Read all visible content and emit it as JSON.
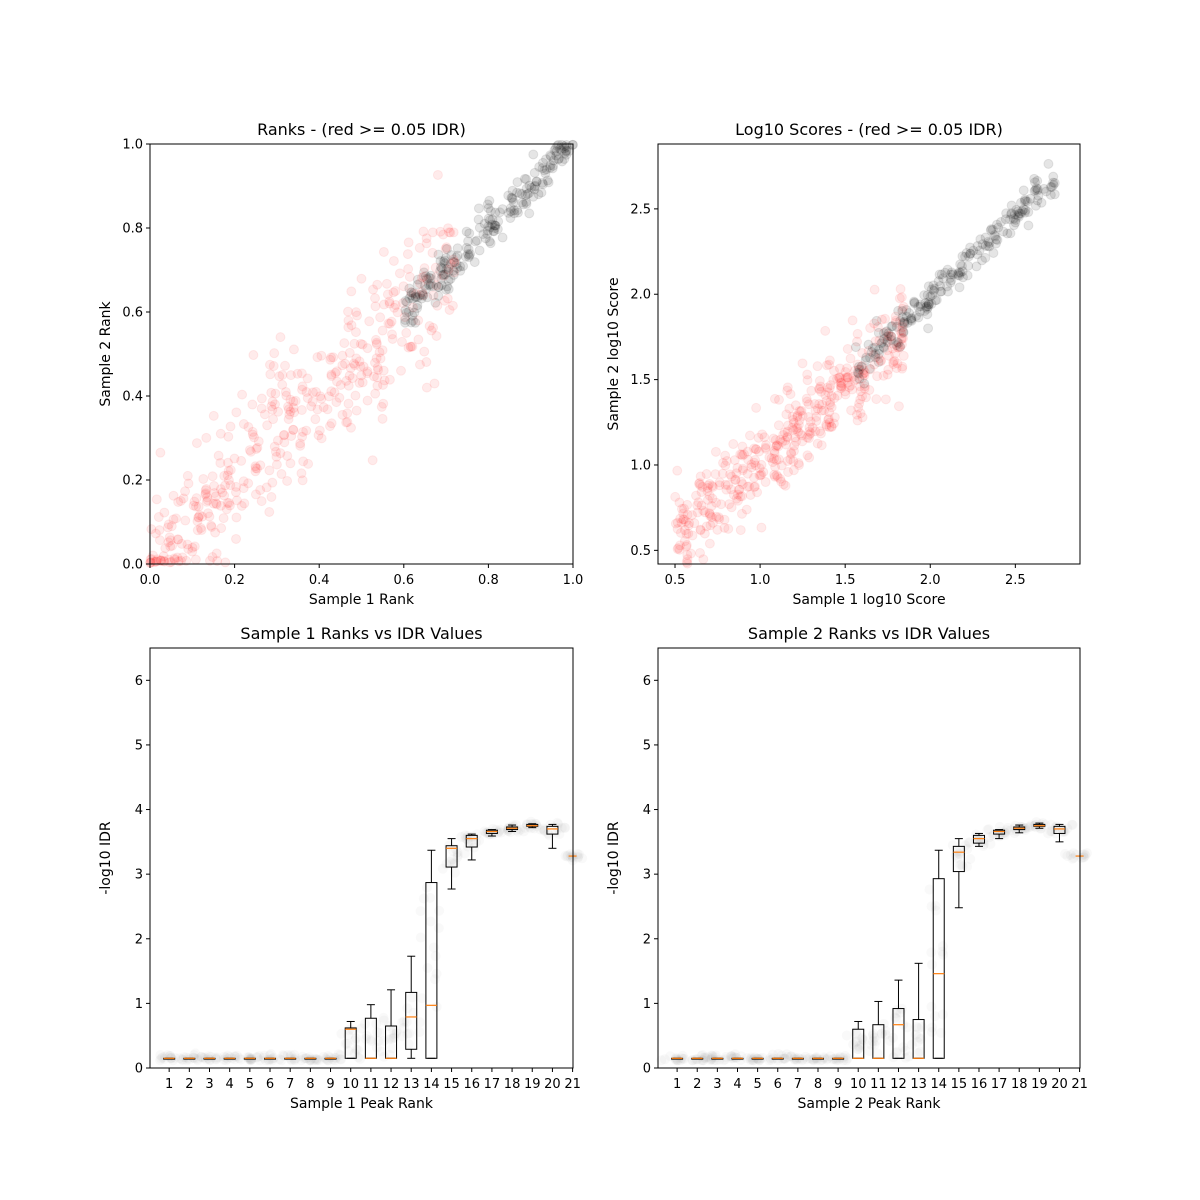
{
  "chart_data": [
    {
      "type": "scatter",
      "title": "Ranks - (red >= 0.05 IDR)",
      "xlabel": "Sample 1 Rank",
      "ylabel": "Sample 2 Rank",
      "xlim": [
        0,
        1
      ],
      "ylim": [
        0,
        1
      ],
      "xticks": [
        "0.0",
        "0.2",
        "0.4",
        "0.6",
        "0.8",
        "1.0"
      ],
      "yticks": [
        "0.0",
        "0.2",
        "0.4",
        "0.6",
        "0.8",
        "1.0"
      ],
      "series": [
        {
          "color": "#ff0000",
          "alpha": 0.08,
          "generator": {
            "n": 420,
            "x": [
              0.0,
              0.72
            ],
            "slope": 1.0,
            "spread": 0.085
          }
        },
        {
          "color": "#000000",
          "alpha": 0.1,
          "generator": {
            "n": 210,
            "x": [
              0.6,
              1.0
            ],
            "slope": 1.0,
            "spread": 0.025
          }
        }
      ],
      "grid": false
    },
    {
      "type": "scatter",
      "title": "Log10 Scores - (red >= 0.05 IDR)",
      "xlabel": "Sample 1 log10 Score",
      "ylabel": "Sample 2 log10 Score",
      "xlim": [
        0.4,
        2.88
      ],
      "ylim": [
        0.42,
        2.88
      ],
      "xticks": [
        "0.5",
        "1.0",
        "1.5",
        "2.0",
        "2.5"
      ],
      "yticks": [
        "0.5",
        "1.0",
        "1.5",
        "2.0",
        "2.5"
      ],
      "series": [
        {
          "color": "#ff0000",
          "alpha": 0.08,
          "generator": {
            "n": 420,
            "x": [
              0.5,
              1.85
            ],
            "slope": 0.85,
            "intercept": 0.18,
            "spread": 0.13
          }
        },
        {
          "color": "#000000",
          "alpha": 0.1,
          "generator": {
            "n": 210,
            "x": [
              1.55,
              2.75
            ],
            "slope": 0.95,
            "intercept": 0.08,
            "spread": 0.05
          }
        }
      ],
      "grid": false
    },
    {
      "type": "box",
      "title": "Sample 1 Ranks vs IDR Values",
      "xlabel": "Sample 1 Peak Rank",
      "ylabel": "-log10 IDR",
      "ylim": [
        0,
        6.5
      ],
      "xticks": [
        "1",
        "2",
        "3",
        "4",
        "5",
        "6",
        "7",
        "8",
        "9",
        "10",
        "11",
        "12",
        "13",
        "14",
        "15",
        "16",
        "17",
        "18",
        "19",
        "20",
        "21"
      ],
      "yticks": [
        "0",
        "1",
        "2",
        "3",
        "4",
        "5",
        "6"
      ],
      "boxes": [
        {
          "pos": 1,
          "whislo": 0.15,
          "q1": 0.15,
          "med": 0.15,
          "q3": 0.15,
          "whishi": 0.15
        },
        {
          "pos": 2,
          "whislo": 0.15,
          "q1": 0.15,
          "med": 0.15,
          "q3": 0.15,
          "whishi": 0.15
        },
        {
          "pos": 3,
          "whislo": 0.15,
          "q1": 0.15,
          "med": 0.15,
          "q3": 0.15,
          "whishi": 0.15
        },
        {
          "pos": 4,
          "whislo": 0.15,
          "q1": 0.15,
          "med": 0.15,
          "q3": 0.15,
          "whishi": 0.15
        },
        {
          "pos": 5,
          "whislo": 0.15,
          "q1": 0.15,
          "med": 0.15,
          "q3": 0.15,
          "whishi": 0.15
        },
        {
          "pos": 6,
          "whislo": 0.15,
          "q1": 0.15,
          "med": 0.15,
          "q3": 0.15,
          "whishi": 0.15
        },
        {
          "pos": 7,
          "whislo": 0.15,
          "q1": 0.15,
          "med": 0.15,
          "q3": 0.15,
          "whishi": 0.15
        },
        {
          "pos": 8,
          "whislo": 0.15,
          "q1": 0.15,
          "med": 0.15,
          "q3": 0.15,
          "whishi": 0.15
        },
        {
          "pos": 9,
          "whislo": 0.15,
          "q1": 0.15,
          "med": 0.15,
          "q3": 0.15,
          "whishi": 0.15
        },
        {
          "pos": 10,
          "whislo": 0.15,
          "q1": 0.15,
          "med": 0.6,
          "q3": 0.62,
          "whishi": 0.72
        },
        {
          "pos": 11,
          "whislo": 0.15,
          "q1": 0.15,
          "med": 0.15,
          "q3": 0.77,
          "whishi": 0.98
        },
        {
          "pos": 12,
          "whislo": 0.15,
          "q1": 0.15,
          "med": 0.15,
          "q3": 0.65,
          "whishi": 1.21
        },
        {
          "pos": 13,
          "whislo": 0.15,
          "q1": 0.29,
          "med": 0.79,
          "q3": 1.17,
          "whishi": 1.73
        },
        {
          "pos": 14,
          "whislo": 0.15,
          "q1": 0.15,
          "med": 0.97,
          "q3": 2.87,
          "whishi": 3.37
        },
        {
          "pos": 15,
          "whislo": 2.77,
          "q1": 3.11,
          "med": 3.4,
          "q3": 3.44,
          "whishi": 3.55
        },
        {
          "pos": 16,
          "whislo": 3.22,
          "q1": 3.42,
          "med": 3.55,
          "q3": 3.6,
          "whishi": 3.62
        },
        {
          "pos": 17,
          "whislo": 3.59,
          "q1": 3.63,
          "med": 3.66,
          "q3": 3.68,
          "whishi": 3.69
        },
        {
          "pos": 18,
          "whislo": 3.66,
          "q1": 3.69,
          "med": 3.71,
          "q3": 3.73,
          "whishi": 3.76
        },
        {
          "pos": 19,
          "whislo": 3.72,
          "q1": 3.74,
          "med": 3.75,
          "q3": 3.77,
          "whishi": 3.78
        },
        {
          "pos": 20,
          "whislo": 3.4,
          "q1": 3.62,
          "med": 3.7,
          "q3": 3.74,
          "whishi": 3.77
        },
        {
          "pos": 21,
          "whislo": 3.28,
          "q1": 3.28,
          "med": 3.28,
          "q3": 3.28,
          "whishi": 3.28
        }
      ],
      "grid": false
    },
    {
      "type": "box",
      "title": "Sample 2 Ranks vs IDR Values",
      "xlabel": "Sample 2 Peak Rank",
      "ylabel": "-log10 IDR",
      "ylim": [
        0,
        6.5
      ],
      "xticks": [
        "1",
        "2",
        "3",
        "4",
        "5",
        "6",
        "7",
        "8",
        "9",
        "10",
        "11",
        "12",
        "13",
        "14",
        "15",
        "16",
        "17",
        "18",
        "19",
        "20",
        "21"
      ],
      "yticks": [
        "0",
        "1",
        "2",
        "3",
        "4",
        "5",
        "6"
      ],
      "boxes": [
        {
          "pos": 1,
          "whislo": 0.15,
          "q1": 0.15,
          "med": 0.15,
          "q3": 0.15,
          "whishi": 0.15
        },
        {
          "pos": 2,
          "whislo": 0.15,
          "q1": 0.15,
          "med": 0.15,
          "q3": 0.15,
          "whishi": 0.15
        },
        {
          "pos": 3,
          "whislo": 0.15,
          "q1": 0.15,
          "med": 0.15,
          "q3": 0.15,
          "whishi": 0.15
        },
        {
          "pos": 4,
          "whislo": 0.15,
          "q1": 0.15,
          "med": 0.15,
          "q3": 0.15,
          "whishi": 0.15
        },
        {
          "pos": 5,
          "whislo": 0.15,
          "q1": 0.15,
          "med": 0.15,
          "q3": 0.15,
          "whishi": 0.15
        },
        {
          "pos": 6,
          "whislo": 0.15,
          "q1": 0.15,
          "med": 0.15,
          "q3": 0.15,
          "whishi": 0.15
        },
        {
          "pos": 7,
          "whislo": 0.15,
          "q1": 0.15,
          "med": 0.15,
          "q3": 0.15,
          "whishi": 0.15
        },
        {
          "pos": 8,
          "whislo": 0.15,
          "q1": 0.15,
          "med": 0.15,
          "q3": 0.15,
          "whishi": 0.15
        },
        {
          "pos": 9,
          "whislo": 0.15,
          "q1": 0.15,
          "med": 0.15,
          "q3": 0.15,
          "whishi": 0.15
        },
        {
          "pos": 10,
          "whislo": 0.15,
          "q1": 0.15,
          "med": 0.15,
          "q3": 0.6,
          "whishi": 0.72
        },
        {
          "pos": 11,
          "whislo": 0.15,
          "q1": 0.15,
          "med": 0.15,
          "q3": 0.67,
          "whishi": 1.03
        },
        {
          "pos": 12,
          "whislo": 0.15,
          "q1": 0.15,
          "med": 0.67,
          "q3": 0.92,
          "whishi": 1.36
        },
        {
          "pos": 13,
          "whislo": 0.15,
          "q1": 0.15,
          "med": 0.15,
          "q3": 0.75,
          "whishi": 1.62
        },
        {
          "pos": 14,
          "whislo": 0.15,
          "q1": 0.15,
          "med": 1.46,
          "q3": 2.93,
          "whishi": 3.37
        },
        {
          "pos": 15,
          "whislo": 2.48,
          "q1": 3.04,
          "med": 3.34,
          "q3": 3.43,
          "whishi": 3.55
        },
        {
          "pos": 16,
          "whislo": 3.43,
          "q1": 3.48,
          "med": 3.55,
          "q3": 3.6,
          "whishi": 3.63
        },
        {
          "pos": 17,
          "whislo": 3.55,
          "q1": 3.62,
          "med": 3.66,
          "q3": 3.68,
          "whishi": 3.69
        },
        {
          "pos": 18,
          "whislo": 3.64,
          "q1": 3.69,
          "med": 3.71,
          "q3": 3.73,
          "whishi": 3.76
        },
        {
          "pos": 19,
          "whislo": 3.71,
          "q1": 3.74,
          "med": 3.75,
          "q3": 3.77,
          "whishi": 3.79
        },
        {
          "pos": 20,
          "whislo": 3.5,
          "q1": 3.63,
          "med": 3.7,
          "q3": 3.74,
          "whishi": 3.77
        },
        {
          "pos": 21,
          "whislo": 3.28,
          "q1": 3.28,
          "med": 3.28,
          "q3": 3.28,
          "whishi": 3.28
        }
      ],
      "grid": false
    }
  ]
}
